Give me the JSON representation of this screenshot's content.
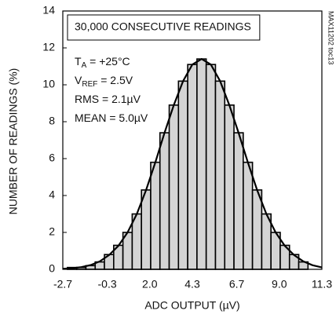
{
  "chart_data": {
    "type": "histogram",
    "xlabel": "ADC OUTPUT (µV)",
    "ylabel": "NUMBER OF READINGS (%)",
    "side_note": "MAX11202 toc13",
    "box_text": "30,000 CONSECUTIVE READINGS",
    "conditions": [
      {
        "main": "T",
        "sub": "A",
        "rest": " = +25°C"
      },
      {
        "main": "V",
        "sub": "REF",
        "rest": " = 2.5V"
      },
      {
        "main": "RMS = 2.1µV"
      },
      {
        "main": "MEAN = 5.0µV"
      }
    ],
    "bins": [
      -2.45,
      -1.95,
      -1.45,
      -0.95,
      -0.45,
      0.05,
      0.55,
      1.05,
      1.55,
      2.05,
      2.55,
      3.05,
      3.55,
      4.05,
      4.55,
      5.05,
      5.55,
      6.05,
      6.55,
      7.05,
      7.55,
      8.05,
      8.55,
      9.05,
      9.55,
      10.05,
      10.55
    ],
    "values": [
      0.1,
      0.1,
      0.2,
      0.4,
      0.8,
      1.3,
      2.0,
      3.0,
      4.3,
      5.8,
      7.4,
      8.9,
      10.2,
      11.1,
      11.4,
      11.1,
      10.2,
      8.9,
      7.4,
      5.8,
      4.3,
      3.0,
      2.0,
      1.3,
      0.8,
      0.4
    ],
    "color": "#d4d4d4",
    "curve": {
      "x": [
        -2.7,
        -2.2,
        -1.7,
        -1.2,
        -0.7,
        -0.2,
        0.3,
        0.8,
        1.3,
        1.8,
        2.3,
        2.8,
        3.3,
        3.8,
        4.3,
        4.8,
        5.3,
        5.8,
        6.3,
        6.8,
        7.3,
        7.8,
        8.3,
        8.8,
        9.3,
        9.8,
        10.3,
        10.8,
        11.3
      ],
      "values": [
        0.03,
        0.06,
        0.12,
        0.23,
        0.43,
        0.77,
        1.27,
        2.0,
        3.0,
        4.3,
        5.8,
        7.4,
        8.9,
        10.2,
        11.1,
        11.4,
        11.1,
        10.2,
        8.9,
        7.4,
        5.8,
        4.3,
        3.0,
        2.0,
        1.27,
        0.77,
        0.43,
        0.22,
        0.1
      ]
    },
    "xlim": [
      -2.7,
      11.3
    ],
    "xticks": [
      -2.7,
      -0.3,
      {
        "value": 2,
        "label": "2.0"
      },
      4.3,
      6.7,
      {
        "value": 9,
        "label": "9.0"
      },
      11.3
    ],
    "ylim": [
      0,
      14
    ],
    "yticks": [
      0,
      2,
      4,
      6,
      8,
      10,
      12,
      14
    ]
  }
}
